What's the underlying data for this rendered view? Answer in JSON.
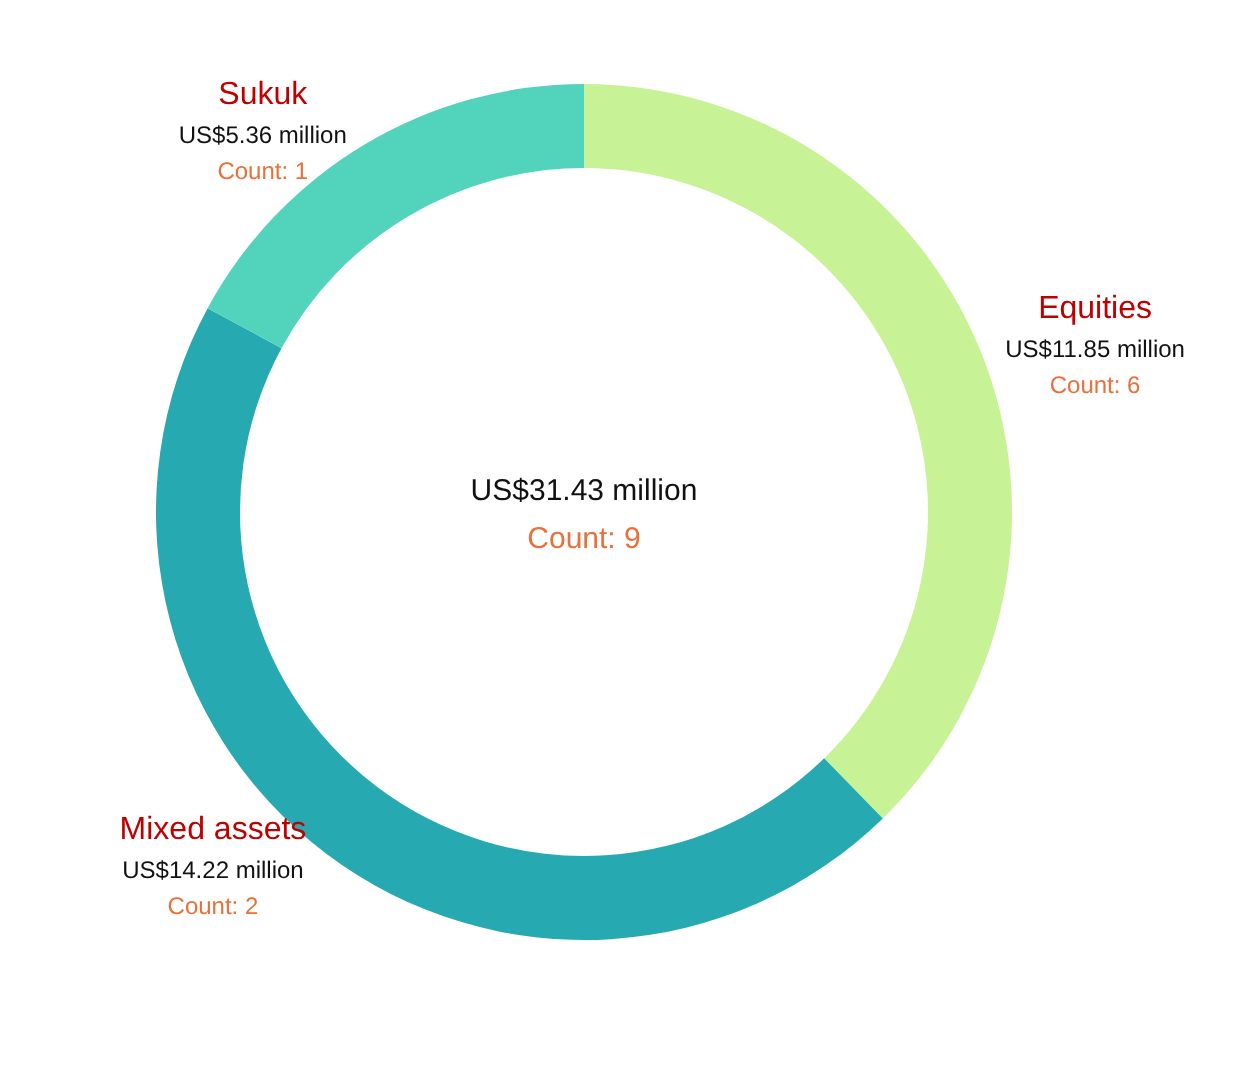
{
  "chart_data": {
    "type": "donut",
    "categories": [
      "Equities",
      "Mixed assets",
      "Sukuk"
    ],
    "values": [
      37.7,
      45.2,
      17.1
    ],
    "colors": [
      "#c8f296",
      "#26a9b0",
      "#52d3bc"
    ],
    "value_labels": [
      "US$11.85 million",
      "US$14.22 million",
      "US$5.36 million"
    ],
    "annotations": [
      {
        "text": "Count: 6",
        "x": "Equities"
      },
      {
        "text": "Count: 2",
        "x": "Mixed assets"
      },
      {
        "text": "Count: 1",
        "x": "Sukuk"
      },
      "US$31.43 million",
      "Count: 9"
    ],
    "legend": false
  }
}
